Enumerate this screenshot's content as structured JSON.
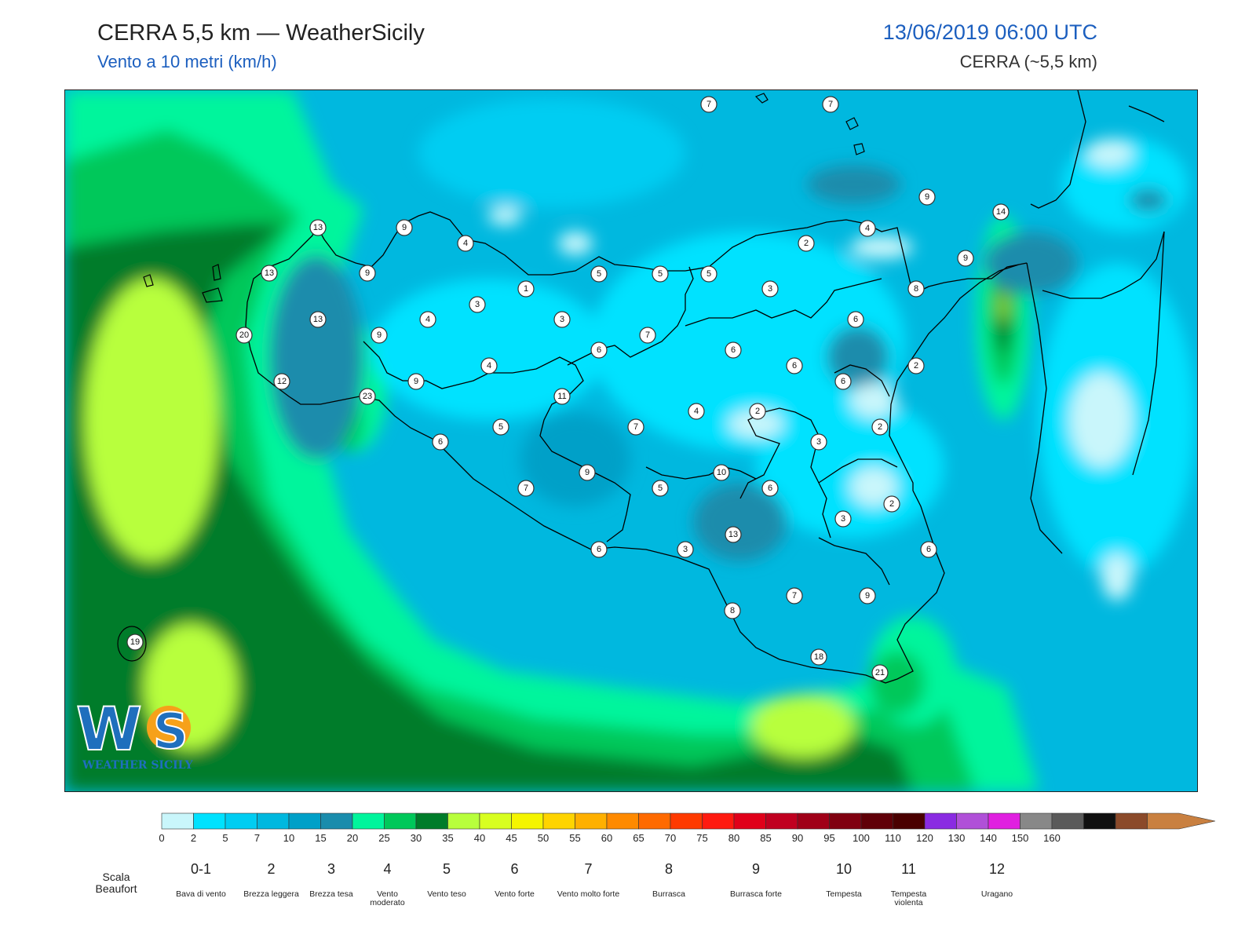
{
  "header": {
    "title": "CERRA 5,5 km — WeatherSicily",
    "subtitle": "Vento a 10 metri (km/h)",
    "datetime": "13/06/2019 06:00 UTC",
    "model": "CERRA (~5,5 km)"
  },
  "logo": {
    "text": "WS",
    "tagline": "WEATHER SICILY"
  },
  "stations": [
    {
      "v": "7"
    },
    {
      "v": "7"
    },
    {
      "v": "9"
    },
    {
      "v": "14"
    },
    {
      "v": "13"
    },
    {
      "v": "9"
    },
    {
      "v": "4"
    },
    {
      "v": "4"
    },
    {
      "v": "2"
    },
    {
      "v": "9"
    },
    {
      "v": "13"
    },
    {
      "v": "9"
    },
    {
      "v": "5"
    },
    {
      "v": "5"
    },
    {
      "v": "5"
    },
    {
      "v": "1"
    },
    {
      "v": "3"
    },
    {
      "v": "3"
    },
    {
      "v": "8"
    },
    {
      "v": "6"
    },
    {
      "v": "13"
    },
    {
      "v": "4"
    },
    {
      "v": "3"
    },
    {
      "v": "20"
    },
    {
      "v": "9"
    },
    {
      "v": "7"
    },
    {
      "v": "6"
    },
    {
      "v": "6"
    },
    {
      "v": "4"
    },
    {
      "v": "6"
    },
    {
      "v": "2"
    },
    {
      "v": "12"
    },
    {
      "v": "9"
    },
    {
      "v": "6"
    },
    {
      "v": "23"
    },
    {
      "v": "11"
    },
    {
      "v": "4"
    },
    {
      "v": "2"
    },
    {
      "v": "5"
    },
    {
      "v": "7"
    },
    {
      "v": "2"
    },
    {
      "v": "6"
    },
    {
      "v": "3"
    },
    {
      "v": "9"
    },
    {
      "v": "10"
    },
    {
      "v": "7"
    },
    {
      "v": "5"
    },
    {
      "v": "6"
    },
    {
      "v": "2"
    },
    {
      "v": "3"
    },
    {
      "v": "13"
    },
    {
      "v": "6"
    },
    {
      "v": "3"
    },
    {
      "v": "6"
    },
    {
      "v": "7"
    },
    {
      "v": "9"
    },
    {
      "v": "8"
    },
    {
      "v": "19"
    },
    {
      "v": "18"
    },
    {
      "v": "21"
    }
  ],
  "legend": {
    "colors": [
      "#c9f6fb",
      "#00e2ff",
      "#00cdf2",
      "#00b8df",
      "#00a0c8",
      "#1a8cac",
      "#00f59c",
      "#00c85a",
      "#007c2a",
      "#b8ff3c",
      "#d8ff20",
      "#f5f500",
      "#ffd400",
      "#ffb000",
      "#ff8a00",
      "#ff6a00",
      "#ff3a00",
      "#ff1a10",
      "#e0001a",
      "#c00020",
      "#a00018",
      "#800010",
      "#600008",
      "#4a0000",
      "#8a2be2",
      "#b050d8",
      "#e020e0",
      "#888888",
      "#5a5a5a",
      "#101010",
      "#8b4a2a",
      "#c98040"
    ],
    "ticks": [
      "0",
      "2",
      "5",
      "7",
      "10",
      "15",
      "20",
      "25",
      "30",
      "35",
      "40",
      "45",
      "50",
      "55",
      "60",
      "65",
      "70",
      "75",
      "80",
      "85",
      "90",
      "95",
      "100",
      "110",
      "120",
      "130",
      "140",
      "150",
      "160"
    ],
    "beaufort_title": "Scala Beaufort",
    "beaufort": [
      {
        "num": "0-1",
        "desc": "Bava di vento"
      },
      {
        "num": "2",
        "desc": "Brezza leggera"
      },
      {
        "num": "3",
        "desc": "Brezza tesa"
      },
      {
        "num": "4",
        "desc": "Vento moderato"
      },
      {
        "num": "5",
        "desc": "Vento teso"
      },
      {
        "num": "6",
        "desc": "Vento forte"
      },
      {
        "num": "7",
        "desc": "Vento molto forte"
      },
      {
        "num": "8",
        "desc": "Burrasca"
      },
      {
        "num": "9",
        "desc": "Burrasca forte"
      },
      {
        "num": "10",
        "desc": "Tempesta"
      },
      {
        "num": "11",
        "desc": "Tempesta violenta"
      },
      {
        "num": "12",
        "desc": "Uragano"
      }
    ]
  }
}
